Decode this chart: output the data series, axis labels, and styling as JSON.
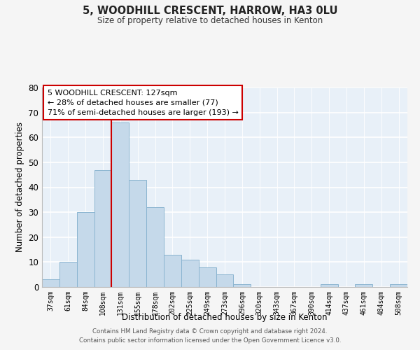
{
  "title1": "5, WOODHILL CRESCENT, HARROW, HA3 0LU",
  "title2": "Size of property relative to detached houses in Kenton",
  "xlabel": "Distribution of detached houses by size in Kenton",
  "ylabel": "Number of detached properties",
  "categories": [
    "37sqm",
    "61sqm",
    "84sqm",
    "108sqm",
    "131sqm",
    "155sqm",
    "178sqm",
    "202sqm",
    "225sqm",
    "249sqm",
    "273sqm",
    "296sqm",
    "320sqm",
    "343sqm",
    "367sqm",
    "390sqm",
    "414sqm",
    "437sqm",
    "461sqm",
    "484sqm",
    "508sqm"
  ],
  "values": [
    3,
    10,
    30,
    47,
    66,
    43,
    32,
    13,
    11,
    8,
    5,
    1,
    0,
    0,
    0,
    0,
    1,
    0,
    1,
    0,
    1
  ],
  "bar_color": "#c5d9ea",
  "bar_edge_color": "#8ab4d0",
  "vline_x_index": 4,
  "vline_color": "#cc0000",
  "ylim": [
    0,
    80
  ],
  "yticks": [
    0,
    10,
    20,
    30,
    40,
    50,
    60,
    70,
    80
  ],
  "annotation_title": "5 WOODHILL CRESCENT: 127sqm",
  "annotation_line1": "← 28% of detached houses are smaller (77)",
  "annotation_line2": "71% of semi-detached houses are larger (193) →",
  "annotation_box_color": "#ffffff",
  "annotation_box_edge": "#cc0000",
  "plot_bg_color": "#e8f0f8",
  "fig_bg_color": "#f5f5f5",
  "grid_color": "#ffffff",
  "footer1": "Contains HM Land Registry data © Crown copyright and database right 2024.",
  "footer2": "Contains public sector information licensed under the Open Government Licence v3.0."
}
